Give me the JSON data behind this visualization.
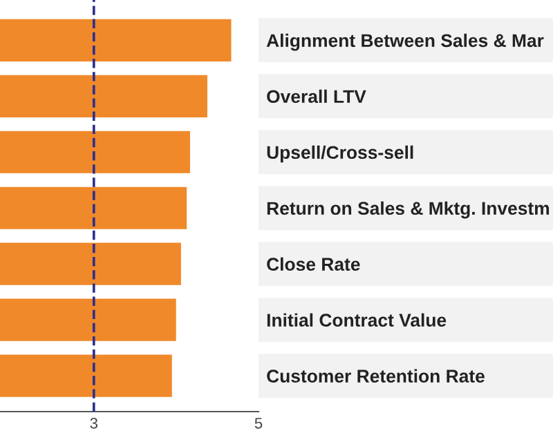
{
  "chart_data": {
    "type": "bar",
    "orientation": "horizontal",
    "categories": [
      "Alignment Between Sales & Mar",
      "Overall LTV",
      "Upsell/Cross-sell",
      "Return on Sales & Mktg. Investm",
      "Close Rate",
      "Initial Contract Value",
      "Customer Retention Rate"
    ],
    "values": [
      4.68,
      4.39,
      4.18,
      4.14,
      4.07,
      4.01,
      3.96
    ],
    "color": "#f0892a",
    "xlim": [
      1.86,
      5
    ],
    "xticks": [
      3,
      5
    ],
    "ref_lines": [
      {
        "axis": "x",
        "value": 3,
        "color": "#2b2f8f",
        "line_style": "dashed"
      }
    ],
    "grid": false,
    "legend": false
  }
}
